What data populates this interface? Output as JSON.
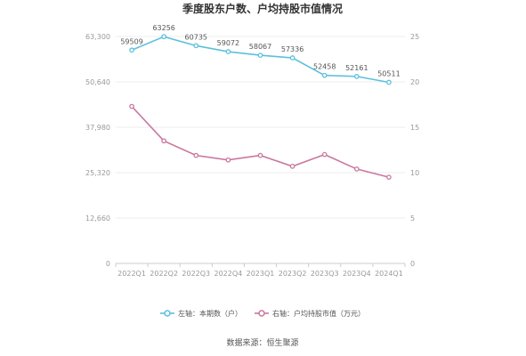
{
  "chart_data": {
    "type": "line",
    "title": "季度股东户数、户均持股市值情况",
    "categories": [
      "2022Q1",
      "2022Q2",
      "2022Q3",
      "2022Q4",
      "2023Q1",
      "2023Q2",
      "2023Q3",
      "2023Q4",
      "2024Q1"
    ],
    "left_axis": {
      "ticks": [
        "0",
        "12,660",
        "25,320",
        "37,980",
        "50,640",
        "63,300"
      ],
      "ylim": [
        0,
        63300
      ]
    },
    "right_axis": {
      "ticks": [
        "0",
        "5",
        "10",
        "15",
        "20",
        "25"
      ],
      "ylim": [
        0,
        25
      ]
    },
    "series": [
      {
        "name": "左轴：本期数（户）",
        "axis": "left",
        "color": "#5bc0de",
        "values": [
          59509,
          63256,
          60735,
          59072,
          58067,
          57336,
          52458,
          52161,
          50511
        ],
        "labels": [
          "59509",
          "63256",
          "60735",
          "59072",
          "58067",
          "57336",
          "52458",
          "52161",
          "50511"
        ]
      },
      {
        "name": "右轴：户均持股市值（万元）",
        "axis": "right",
        "color": "#c9779f",
        "values": [
          17.3,
          13.5,
          11.9,
          11.4,
          11.9,
          10.7,
          12.0,
          10.4,
          9.5
        ]
      }
    ],
    "grid": "horizontal",
    "legend_position": "bottom"
  },
  "footer": {
    "source": "数据来源：恒生聚源"
  }
}
